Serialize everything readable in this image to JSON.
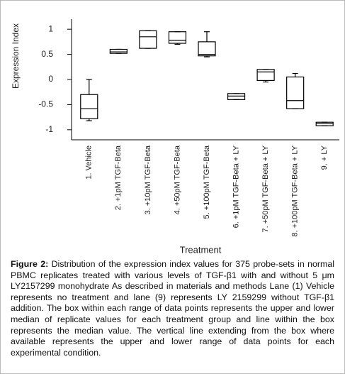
{
  "chart_data": {
    "type": "box",
    "ylabel": "Expression Index",
    "xlabel": "Treatment",
    "categories": [
      "1. Vehicle",
      "2. +1pM TGF-Beta",
      "3. +10pM TGF-Beta",
      "4. +50pM TGF-Beta",
      "5. +100pM TGF-Beta",
      "6. +1pM TGF-Beta + LY",
      "7. +50pM TGF-Beta + LY",
      "8. +100pM TGF-Beta + LY",
      "9. + LY"
    ],
    "values": [
      {
        "min": -0.82,
        "q1": -0.78,
        "median": -0.58,
        "q3": -0.3,
        "max": 0
      },
      {
        "min": 0.52,
        "q1": 0.52,
        "median": 0.55,
        "q3": 0.6,
        "max": 0.6
      },
      {
        "min": 0.62,
        "q1": 0.62,
        "median": 0.85,
        "q3": 0.97,
        "max": 0.97
      },
      {
        "min": 0.7,
        "q1": 0.72,
        "median": 0.78,
        "q3": 0.95,
        "max": 0.95
      },
      {
        "min": 0.45,
        "q1": 0.47,
        "median": 0.5,
        "q3": 0.75,
        "max": 0.95
      },
      {
        "min": -0.4,
        "q1": -0.4,
        "median": -0.33,
        "q3": -0.28,
        "max": -0.28
      },
      {
        "min": -0.05,
        "q1": -0.02,
        "median": 0.15,
        "q3": 0.2,
        "max": 0.2
      },
      {
        "min": -0.58,
        "q1": -0.58,
        "median": -0.42,
        "q3": 0.05,
        "max": 0.12
      },
      {
        "min": -0.92,
        "q1": -0.92,
        "median": -0.88,
        "q3": -0.85,
        "max": -0.85
      }
    ],
    "color": "#000000",
    "ylim": [
      -1.2,
      1.2
    ],
    "yticks": [
      1,
      0.5,
      0,
      -0.5,
      -1
    ],
    "grid": false,
    "caption_label": "Figure 2:",
    "caption": "Distribution of the expression index values for 375 probe-sets in normal PBMC replicates treated with various levels of TGF-β1 with and without 5 μm LY2157299 monohydrate As described in materials and methods Lane (1) Vehicle represents no treatment and lane (9) represents LY 2159299 without TGF-β1 addition. The box within each range of data points represents the upper and lower median of replicate values for each treatment group and line within the box represents the median value.  The vertical line extending from the box where available represents the upper and lower range of data points for each experimental condition."
  }
}
